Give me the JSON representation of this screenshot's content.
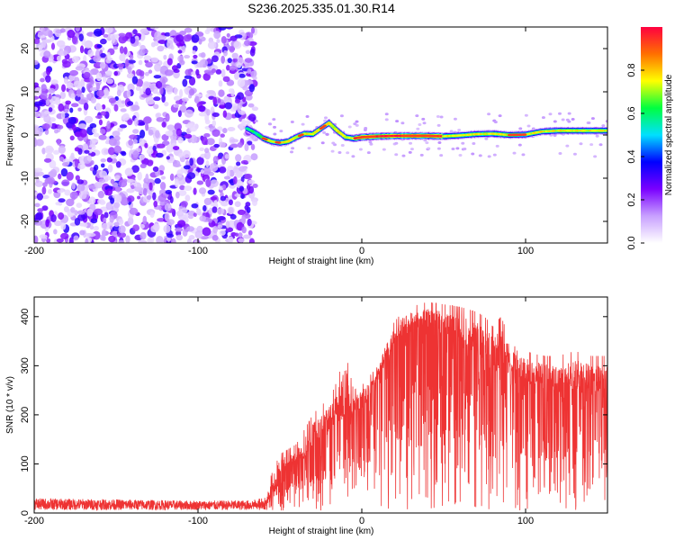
{
  "title": "S236.2025.335.01.30.R14",
  "chart_data": [
    {
      "type": "heatmap",
      "title": "S236.2025.335.01.30.R14",
      "xlabel": "Height of straight line (km)",
      "ylabel": "Frequency (Hz)",
      "xlim": [
        -200,
        150
      ],
      "ylim": [
        -25,
        25
      ],
      "xticks": [
        -200,
        -100,
        0,
        100
      ],
      "yticks": [
        20,
        10,
        0,
        -10,
        -20
      ],
      "colorbar": {
        "label": "Normalized spectral amplitude",
        "range": [
          0.0,
          1.0
        ],
        "ticks": [
          0.0,
          0.2,
          0.4,
          0.6,
          0.8
        ],
        "colors": [
          "#ffffff",
          "#c8a0ff",
          "#7a00ff",
          "#0000ff",
          "#00e0ff",
          "#00ff40",
          "#ffff00",
          "#ff7000",
          "#ff0040"
        ]
      },
      "ridge": {
        "description_free": true,
        "x": [
          -70,
          -65,
          -60,
          -55,
          -50,
          -45,
          -40,
          -35,
          -30,
          -25,
          -20,
          -15,
          -10,
          -5,
          0,
          10,
          20,
          30,
          40,
          50,
          60,
          70,
          80,
          90,
          100,
          110,
          120,
          130,
          140,
          150
        ],
        "freq": [
          1.5,
          0.5,
          -0.8,
          -1.5,
          -1.8,
          -1.5,
          -0.5,
          0.3,
          0.2,
          1.5,
          2.8,
          1.0,
          -0.5,
          -0.8,
          -0.5,
          -0.3,
          -0.2,
          -0.2,
          -0.2,
          -0.3,
          -0.1,
          0.2,
          0.3,
          0.0,
          0.1,
          0.8,
          1.0,
          1.0,
          1.0,
          1.0
        ]
      }
    },
    {
      "type": "line",
      "xlabel": "Height of straight line (km)",
      "ylabel": "SNR (10 * v/v)",
      "xlim": [
        -200,
        150
      ],
      "ylim": [
        0,
        440
      ],
      "xticks": [
        -200,
        -100,
        0,
        100
      ],
      "yticks": [
        0,
        100,
        200,
        300,
        400
      ],
      "series": [
        {
          "color": "#ee3333",
          "envelope_x": [
            -200,
            -150,
            -100,
            -70,
            -60,
            -55,
            -50,
            -45,
            -40,
            -35,
            -30,
            -25,
            -20,
            -15,
            -10,
            -5,
            0,
            5,
            10,
            15,
            20,
            25,
            30,
            35,
            40,
            50,
            60,
            70,
            75,
            80,
            85,
            90,
            95,
            100,
            110,
            120,
            130,
            140,
            150
          ],
          "envelope_upper": [
            30,
            28,
            25,
            26,
            30,
            80,
            120,
            130,
            140,
            170,
            200,
            220,
            230,
            270,
            330,
            250,
            260,
            280,
            300,
            360,
            390,
            410,
            420,
            425,
            430,
            425,
            420,
            410,
            400,
            380,
            400,
            360,
            330,
            330,
            320,
            320,
            330,
            320,
            320
          ],
          "envelope_mean": [
            14,
            14,
            14,
            14,
            16,
            50,
            80,
            100,
            110,
            120,
            140,
            160,
            180,
            200,
            230,
            210,
            220,
            250,
            280,
            320,
            350,
            370,
            380,
            385,
            385,
            380,
            370,
            340,
            330,
            300,
            320,
            300,
            290,
            280,
            270,
            260,
            270,
            260,
            250
          ]
        }
      ]
    }
  ]
}
